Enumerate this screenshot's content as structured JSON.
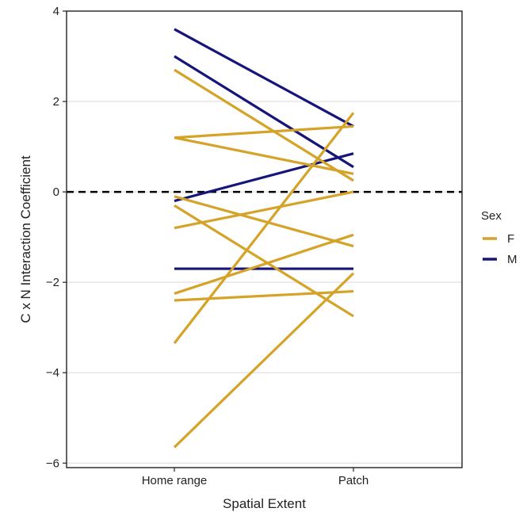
{
  "chart_data": {
    "type": "line",
    "xlabel": "Spatial Extent",
    "ylabel": "C x N Interaction Coefficient",
    "categories": [
      "Home range",
      "Patch"
    ],
    "ylim": [
      -6.1,
      4.0
    ],
    "yticks": [
      4,
      2,
      0,
      -2,
      -4,
      -6
    ],
    "ytick_labels": [
      "4",
      "2",
      "0",
      "−2",
      "−4",
      "−6"
    ],
    "grid": "horizontal",
    "reference_line": {
      "y": 0,
      "style": "dashed",
      "color": "#000000"
    },
    "legend": {
      "title": "Sex",
      "position": "right",
      "entries": [
        {
          "key": "F",
          "label": "F",
          "color": "#D4A327"
        },
        {
          "key": "M",
          "label": "M",
          "color": "#15157A"
        }
      ]
    },
    "series": [
      {
        "group": "M",
        "values": [
          3.6,
          1.45
        ]
      },
      {
        "group": "M",
        "values": [
          3.0,
          0.55
        ]
      },
      {
        "group": "M",
        "values": [
          -0.2,
          0.85
        ]
      },
      {
        "group": "M",
        "values": [
          -1.7,
          -1.7
        ]
      },
      {
        "group": "F",
        "values": [
          2.7,
          0.25
        ]
      },
      {
        "group": "F",
        "values": [
          1.2,
          1.45
        ]
      },
      {
        "group": "F",
        "values": [
          1.2,
          0.4
        ]
      },
      {
        "group": "F",
        "values": [
          -0.1,
          -1.2
        ]
      },
      {
        "group": "F",
        "values": [
          -0.3,
          -2.75
        ]
      },
      {
        "group": "F",
        "values": [
          -0.8,
          0.0
        ]
      },
      {
        "group": "F",
        "values": [
          -2.25,
          -0.95
        ]
      },
      {
        "group": "F",
        "values": [
          -2.4,
          -2.2
        ]
      },
      {
        "group": "F",
        "values": [
          -3.35,
          1.75
        ]
      },
      {
        "group": "F",
        "values": [
          -5.65,
          -1.8
        ]
      }
    ]
  }
}
